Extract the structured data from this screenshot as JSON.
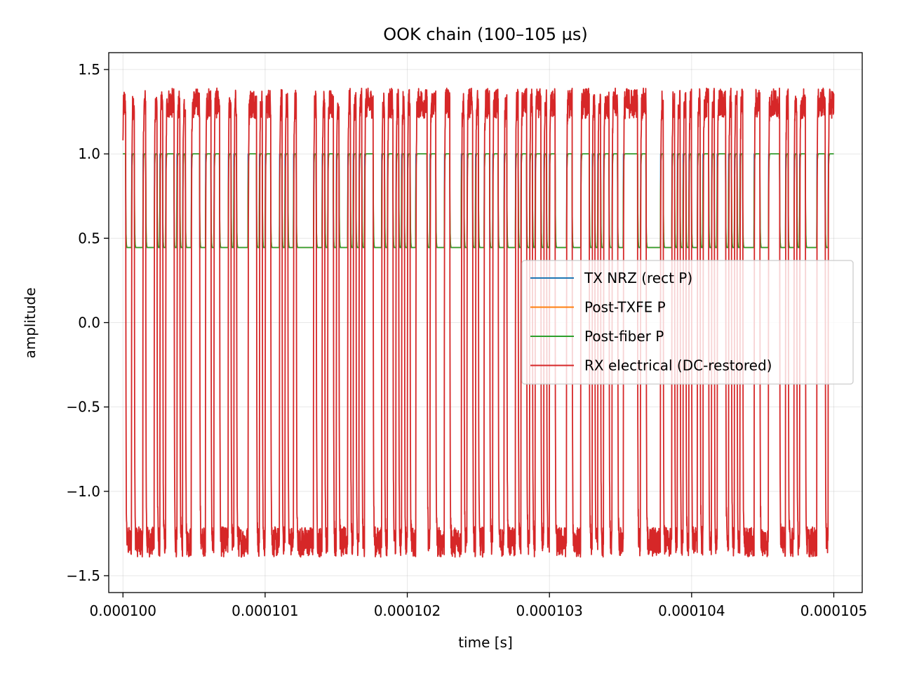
{
  "chart_data": {
    "type": "line",
    "title": "OOK chain (100–105 µs)",
    "xlabel": "time [s]",
    "ylabel": "amplitude",
    "xlim": [
      9.99e-05,
      0.0001052
    ],
    "ylim": [
      -1.6,
      1.6
    ],
    "grid": true,
    "legend_position": "center-right",
    "x_ticks": [
      0.0001,
      0.000101,
      0.000102,
      0.000103,
      0.000104,
      0.000105
    ],
    "x_tick_labels": [
      "0.000100",
      "0.000101",
      "0.000102",
      "0.000103",
      "0.000104",
      "0.000105"
    ],
    "y_ticks": [
      -1.5,
      -1.0,
      -0.5,
      0.0,
      0.5,
      1.0,
      1.5
    ],
    "y_tick_labels": [
      "−1.5",
      "−1.0",
      "−0.5",
      "0.0",
      "0.5",
      "1.0",
      "1.5"
    ],
    "t_start": 0.0001,
    "t_end": 0.000105,
    "bit_period": 2e-08,
    "bits": "1001000100010101110101001110011011000101000011101011000101001000000100101101000101010111000101101010100111101100011000010110100110110010001011010110101100001100011101010110110011111011000001000101010100101101011101010100001100011110010010110000111011011000",
    "series": [
      {
        "name": "TX NRZ (rect P)",
        "color": "#1f77b4",
        "high": 1.0,
        "low": 0.445
      },
      {
        "name": "Post-TXFE P",
        "color": "#ff7f0e",
        "high": 1.0,
        "low": 0.445
      },
      {
        "name": "Post-fiber P",
        "color": "#2ca02c",
        "high": 1.0,
        "low": 0.445
      },
      {
        "name": "RX electrical (DC-restored)",
        "color": "#d62728",
        "high": 1.3,
        "low": -1.3
      }
    ]
  }
}
